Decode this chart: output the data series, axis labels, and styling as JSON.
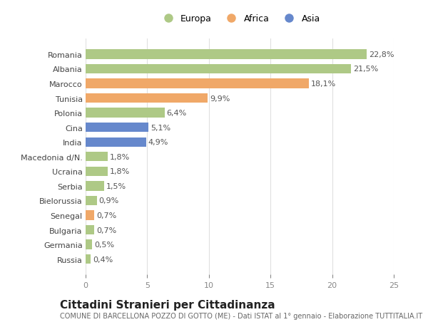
{
  "categories": [
    "Russia",
    "Germania",
    "Bulgaria",
    "Senegal",
    "Bielorussia",
    "Serbia",
    "Ucraina",
    "Macedonia d/N.",
    "India",
    "Cina",
    "Polonia",
    "Tunisia",
    "Marocco",
    "Albania",
    "Romania"
  ],
  "values": [
    0.4,
    0.5,
    0.7,
    0.7,
    0.9,
    1.5,
    1.8,
    1.8,
    4.9,
    5.1,
    6.4,
    9.9,
    18.1,
    21.5,
    22.8
  ],
  "labels": [
    "0,4%",
    "0,5%",
    "0,7%",
    "0,7%",
    "0,9%",
    "1,5%",
    "1,8%",
    "1,8%",
    "4,9%",
    "5,1%",
    "6,4%",
    "9,9%",
    "18,1%",
    "21,5%",
    "22,8%"
  ],
  "colors": [
    "#aec986",
    "#aec986",
    "#aec986",
    "#f0a868",
    "#aec986",
    "#aec986",
    "#aec986",
    "#aec986",
    "#6688cc",
    "#6688cc",
    "#aec986",
    "#f0a868",
    "#f0a868",
    "#aec986",
    "#aec986"
  ],
  "legend_labels": [
    "Europa",
    "Africa",
    "Asia"
  ],
  "legend_colors": [
    "#aec986",
    "#f0a868",
    "#6688cc"
  ],
  "title": "Cittadini Stranieri per Cittadinanza",
  "subtitle": "COMUNE DI BARCELLONA POZZO DI GOTTO (ME) - Dati ISTAT al 1° gennaio - Elaborazione TUTTITALIA.IT",
  "xlim": [
    0,
    25
  ],
  "xticks": [
    0,
    5,
    10,
    15,
    20,
    25
  ],
  "background_color": "#ffffff",
  "grid_color": "#e0e0e0",
  "bar_height": 0.65,
  "title_fontsize": 11,
  "subtitle_fontsize": 7,
  "label_fontsize": 8,
  "tick_fontsize": 8,
  "legend_fontsize": 9
}
